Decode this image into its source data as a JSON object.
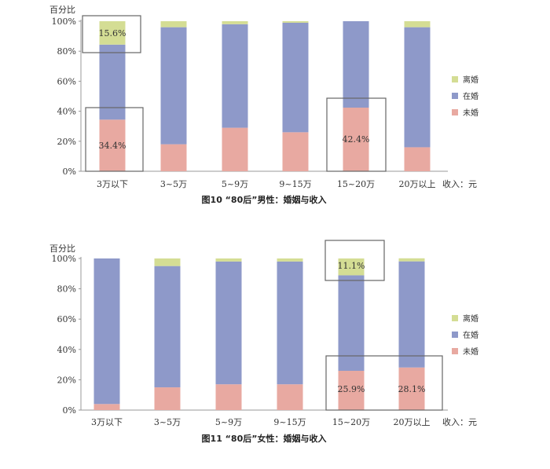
{
  "chart_data": [
    {
      "type": "bar",
      "stacked": true,
      "caption": "图10 “80后”男性：婚姻与收入",
      "ylabel": "百分比",
      "xlabel": "收入：元",
      "ylim": [
        0,
        100
      ],
      "yticks": [
        "0%",
        "20%",
        "40%",
        "60%",
        "80%",
        "100%"
      ],
      "categories": [
        "3万以下",
        "3~5万",
        "5~9万",
        "9~15万",
        "15~20万",
        "20万以上"
      ],
      "series": [
        {
          "name": "未婚",
          "color": "#e8a9a1",
          "values": [
            34.4,
            18,
            29,
            26,
            42.4,
            16
          ]
        },
        {
          "name": "在婚",
          "color": "#8e99c9",
          "values": [
            50,
            78,
            69,
            73,
            57.6,
            80
          ]
        },
        {
          "name": "离婚",
          "color": "#d4dd94",
          "values": [
            15.6,
            4,
            2,
            1,
            0,
            4
          ]
        }
      ],
      "legend": [
        "离婚",
        "在婚",
        "未婚"
      ],
      "legend_position": "right",
      "annotations": [
        "15.6%",
        "34.4%",
        "42.4%"
      ]
    },
    {
      "type": "bar",
      "stacked": true,
      "caption": "图11 “80后”女性：婚姻与收入",
      "ylabel": "百分比",
      "xlabel": "收入：元",
      "ylim": [
        0,
        100
      ],
      "yticks": [
        "0%",
        "20%",
        "40%",
        "60%",
        "80%",
        "100%"
      ],
      "categories": [
        "3万以下",
        "3~5万",
        "5~9万",
        "9~15万",
        "15~20万",
        "20万以上"
      ],
      "series": [
        {
          "name": "未婚",
          "color": "#e8a9a1",
          "values": [
            4,
            15,
            17,
            17,
            25.9,
            28.1
          ]
        },
        {
          "name": "在婚",
          "color": "#8e99c9",
          "values": [
            96,
            80,
            81,
            81,
            63,
            70
          ]
        },
        {
          "name": "离婚",
          "color": "#d4dd94",
          "values": [
            0,
            5,
            2,
            2,
            11.1,
            2
          ]
        }
      ],
      "legend": [
        "离婚",
        "在婚",
        "未婚"
      ],
      "legend_position": "right",
      "annotations": [
        "11.1%",
        "25.9%",
        "28.1%"
      ]
    }
  ]
}
